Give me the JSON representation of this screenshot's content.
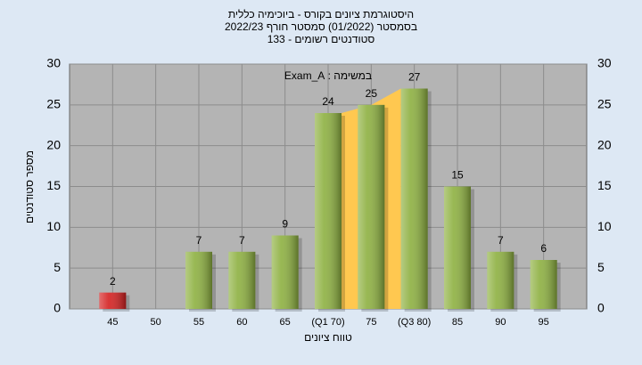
{
  "chart_data": {
    "type": "bar",
    "title_lines": [
      "היסטוגרמת ציונים בקורס - ביוכימיה כללית",
      "בסמסטר (01/2022) סמסטר חורף 2022/23",
      "סטודנטים רשומים - 133"
    ],
    "annotation": "במשימה : Exam_A",
    "x_label": "טווח ציונים",
    "y_label": "מספר סטודנטים",
    "categories": [
      "45",
      "50",
      "55",
      "60",
      "65",
      "(Q1 70)",
      "75",
      "(Q3 80)",
      "85",
      "90",
      "95"
    ],
    "values": [
      2,
      null,
      7,
      7,
      9,
      24,
      25,
      27,
      15,
      7,
      6
    ],
    "colors": [
      "#d42020",
      "#8db040",
      "#8db040",
      "#8db040",
      "#8db040",
      "#8db040",
      "#8db040",
      "#8db040",
      "#8db040",
      "#8db040",
      "#8db040"
    ],
    "quartile_color": "#ffc850",
    "ylim": [
      0,
      30
    ],
    "yticks": [
      0,
      5,
      10,
      15,
      20,
      25,
      30
    ],
    "grid": true
  }
}
